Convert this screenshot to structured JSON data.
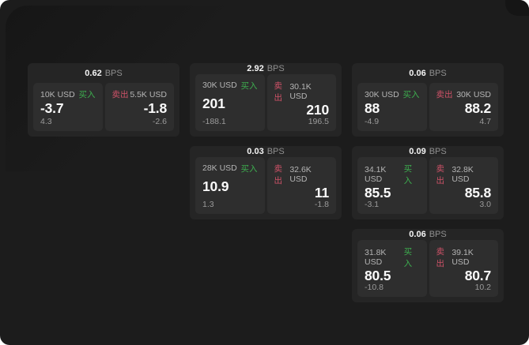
{
  "unit_label": "BPS",
  "colors": {
    "background": "#1c1c1c",
    "card": "#252525",
    "panel": "#2e2e2e",
    "buy_green": "#3dae4f",
    "sell_red": "#cf5268"
  },
  "cards": [
    {
      "bps": "0.62",
      "buy": {
        "amount": "10K USD",
        "side_label": "买入",
        "value": "-3.7",
        "delta": "4.3"
      },
      "sell": {
        "side_label": "卖出",
        "amount": "5.5K USD",
        "value": "-1.8",
        "delta": "-2.6"
      }
    },
    {
      "bps": "2.92",
      "buy": {
        "amount": "30K USD",
        "side_label": "买入",
        "value": "201",
        "delta": "-188.1"
      },
      "sell": {
        "side_label": "卖出",
        "amount": "30.1K USD",
        "value": "210",
        "delta": "196.5"
      }
    },
    {
      "bps": "0.06",
      "buy": {
        "amount": "30K USD",
        "side_label": "买入",
        "value": "88",
        "delta": "-4.9"
      },
      "sell": {
        "side_label": "卖出",
        "amount": "30K USD",
        "value": "88.2",
        "delta": "4.7"
      }
    },
    {
      "bps": "0.03",
      "buy": {
        "amount": "28K USD",
        "side_label": "买入",
        "value": "10.9",
        "delta": "1.3"
      },
      "sell": {
        "side_label": "卖出",
        "amount": "32.6K USD",
        "value": "11",
        "delta": "-1.8"
      }
    },
    {
      "bps": "0.09",
      "buy": {
        "amount": "34.1K USD",
        "side_label": "买入",
        "value": "85.5",
        "delta": "-3.1"
      },
      "sell": {
        "side_label": "卖出",
        "amount": "32.8K USD",
        "value": "85.8",
        "delta": "3.0"
      }
    },
    {
      "bps": "0.06",
      "buy": {
        "amount": "31.8K USD",
        "side_label": "买入",
        "value": "80.5",
        "delta": "-10.8"
      },
      "sell": {
        "side_label": "卖出",
        "amount": "39.1K USD",
        "value": "80.7",
        "delta": "10.2"
      }
    }
  ]
}
